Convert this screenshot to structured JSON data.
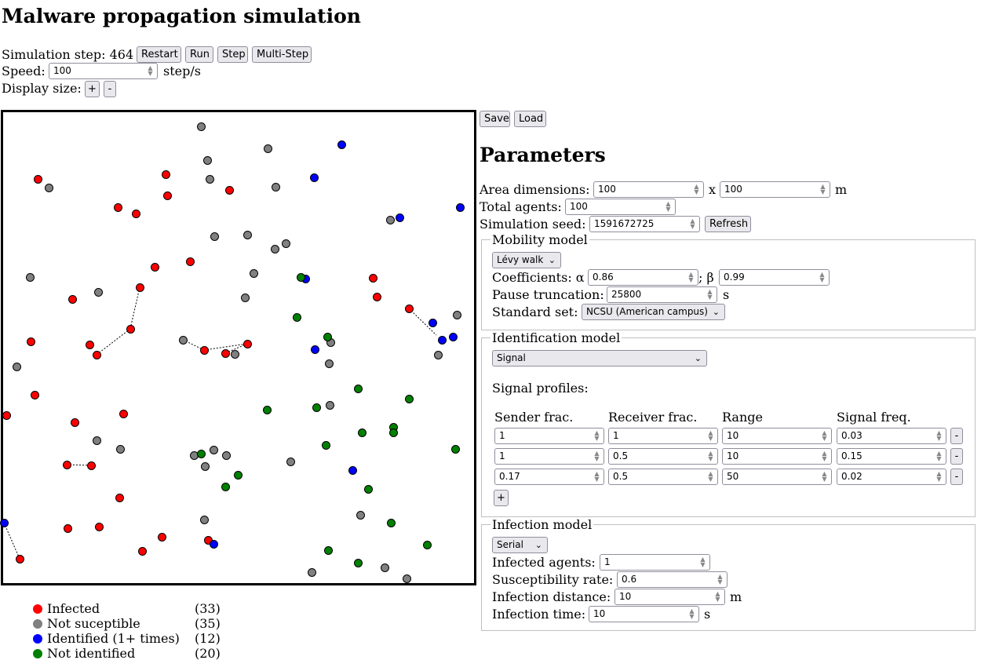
{
  "title": "Malware propagation simulation",
  "controls": {
    "step_label": "Simulation step: 464",
    "restart": "Restart",
    "run": "Run",
    "step": "Step",
    "multistep": "Multi-Step",
    "speed_label": "Speed:",
    "speed_value": "100",
    "speed_unit": "step/s",
    "display_label": "Display size:",
    "plus": "+",
    "minus": "-"
  },
  "file": {
    "save": "Save",
    "load": "Load"
  },
  "params": {
    "heading": "Parameters",
    "area_label": "Area dimensions:",
    "area_w": "100",
    "area_x": "x",
    "area_h": "100",
    "area_unit": "m",
    "agents_label": "Total agents:",
    "agents": "100",
    "seed_label": "Simulation seed:",
    "seed": "1591672725",
    "refresh": "Refresh"
  },
  "mobility": {
    "legend": "Mobility model",
    "model": "Lévy walk",
    "coef_label": "Coefficients: α",
    "alpha": "0.86",
    "beta_label": "; β",
    "beta": "0.99",
    "pause_label": "Pause truncation:",
    "pause": "25800",
    "pause_unit": "s",
    "std_label": "Standard set:",
    "std": "NCSU (American campus)"
  },
  "identification": {
    "legend": "Identification model",
    "model": "Signal",
    "profiles_label": "Signal profiles:",
    "columns": [
      "Sender frac.",
      "Receiver frac.",
      "Range",
      "Signal freq."
    ],
    "rows": [
      [
        "1",
        "1",
        "10",
        "0.03"
      ],
      [
        "1",
        "0.5",
        "10",
        "0.15"
      ],
      [
        "0.17",
        "0.5",
        "50",
        "0.02"
      ]
    ],
    "remove": "-",
    "add": "+"
  },
  "infection": {
    "legend": "Infection model",
    "model": "Serial",
    "infected_label": "Infected agents:",
    "infected": "1",
    "rate_label": "Susceptibility rate:",
    "rate": "0.6",
    "dist_label": "Infection distance:",
    "dist": "10",
    "dist_unit": "m",
    "time_label": "Infection time:",
    "time": "10",
    "time_unit": "s"
  },
  "legend": [
    {
      "label": "Infected",
      "count": "(33)",
      "color": "#ff0000"
    },
    {
      "label": "Not suceptible",
      "count": "(35)",
      "color": "#808080"
    },
    {
      "label": "Identified (1+ times)",
      "count": "(12)",
      "color": "#0000ff"
    },
    {
      "label": "Not identified",
      "count": "(20)",
      "color": "#008000"
    }
  ],
  "colors": {
    "infected": "#ff0000",
    "not_susceptible": "#808080",
    "identified": "#0000ff",
    "not_identified": "#008000"
  }
}
